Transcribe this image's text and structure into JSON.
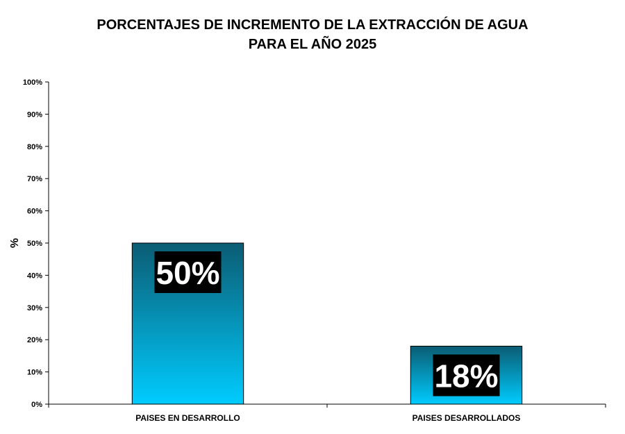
{
  "chart_data": {
    "type": "bar",
    "title": [
      "PORCENTAJES DE INCREMENTO DE LA EXTRACCIÓN DE AGUA",
      "PARA EL AÑO 2025"
    ],
    "ylabel": "%",
    "xlabel": "",
    "categories": [
      "PAISES EN DESARROLLO",
      "PAISES DESARROLLADOS"
    ],
    "values": [
      50,
      18
    ],
    "data_labels": [
      "50%",
      "18%"
    ],
    "ylim": [
      0,
      100
    ],
    "yticks": [
      0,
      10,
      20,
      30,
      40,
      50,
      60,
      70,
      80,
      90,
      100
    ],
    "ytick_labels": [
      "0%",
      "10%",
      "20%",
      "30%",
      "40%",
      "50%",
      "60%",
      "70%",
      "80%",
      "90%",
      "100%"
    ],
    "grid": false,
    "legend": "none",
    "colors": {
      "bar_gradient_top": "#0b5c73",
      "bar_gradient_bottom": "#00ccff",
      "label_box": "#000000",
      "label_text": "#ffffff"
    }
  }
}
